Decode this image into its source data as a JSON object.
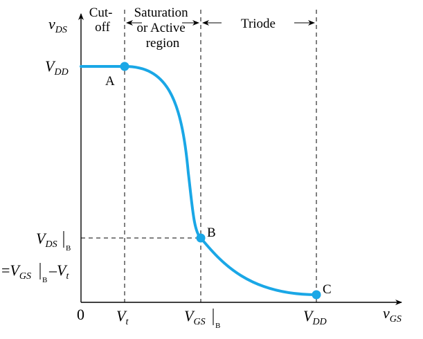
{
  "axes": {
    "y_label": {
      "main": "v",
      "sub": "DS"
    },
    "x_label": {
      "main": "v",
      "sub": "GS"
    },
    "origin": "0"
  },
  "regions": {
    "cutoff": [
      "Cut-",
      "off"
    ],
    "saturation": [
      "Saturation",
      "or Active",
      "region"
    ],
    "triode": "Triode"
  },
  "y_ticks": {
    "vdd": {
      "main": "V",
      "sub": "DD"
    },
    "vds_b": {
      "main": "V",
      "sub": "DS",
      "bar_sub": "B"
    },
    "eq_line": {
      "prefix": "=",
      "main": "V",
      "sub": "GS",
      "bar_sub": "B",
      "minus": "–",
      "vt_main": "V",
      "vt_sub": "t"
    }
  },
  "x_ticks": {
    "vt": {
      "main": "V",
      "sub": "t"
    },
    "vgs_b": {
      "main": "V",
      "sub": "GS",
      "bar_sub": "B"
    },
    "vdd": {
      "main": "V",
      "sub": "DD"
    }
  },
  "points": {
    "a": "A",
    "b": "B",
    "c": "C"
  },
  "colors": {
    "curve": "#1aa7e6",
    "axis": "#000000"
  }
}
